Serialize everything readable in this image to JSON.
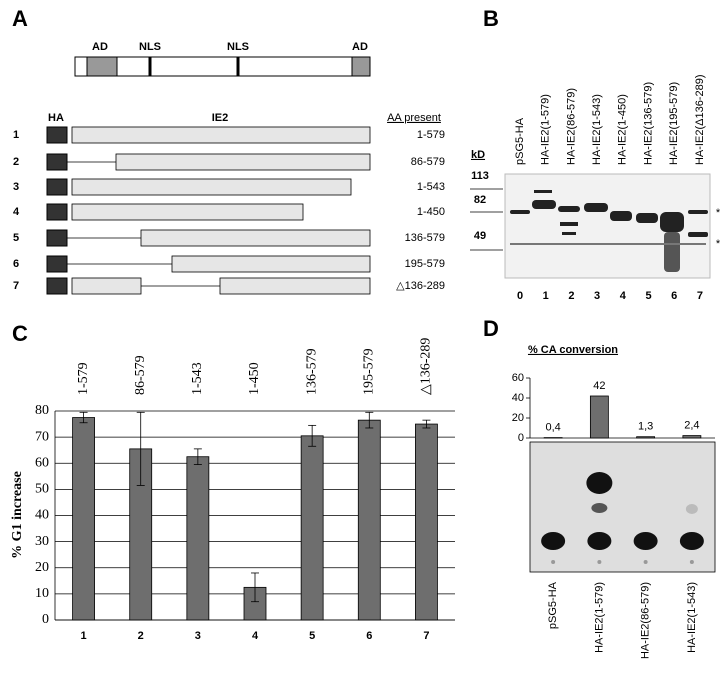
{
  "panel_a": {
    "label": "A",
    "domains": [
      "AD",
      "NLS",
      "NLS",
      "AD"
    ],
    "ha": "HA",
    "ie2": "IE2",
    "aa_header": "AA present",
    "rows": [
      {
        "number": "1",
        "range": "1-579"
      },
      {
        "number": "2",
        "range": "86-579"
      },
      {
        "number": "3",
        "range": "1-543"
      },
      {
        "number": "4",
        "range": "1-450"
      },
      {
        "number": "5",
        "range": "136-579"
      },
      {
        "number": "6",
        "range": "195-579"
      },
      {
        "number": "7",
        "range": "△136-289"
      }
    ]
  },
  "panel_b": {
    "label": "B",
    "kd": "kD",
    "markers": [
      "113",
      "82",
      "49"
    ],
    "lanes": [
      "pSG5-HA",
      "HA-IE2(1-579)",
      "HA-IE2(86-579)",
      "HA-IE2(1-543)",
      "HA-IE2(1-450)",
      "HA-IE2(136-579)",
      "HA-IE2(195-579)",
      "HA-IE2(Δ136-289)"
    ],
    "lane_numbers": [
      "0",
      "1",
      "2",
      "3",
      "4",
      "5",
      "6",
      "7"
    ],
    "stars": [
      "*",
      "*"
    ]
  },
  "chart_data": [
    {
      "type": "bar",
      "panel_label": "C",
      "y_label": "% G1 increase",
      "categories": [
        "1",
        "2",
        "3",
        "4",
        "5",
        "6",
        "7"
      ],
      "top_labels": [
        "1-579",
        "86-579",
        "1-543",
        "1-450",
        "136-579",
        "195-579",
        "△136-289"
      ],
      "values": [
        77.5,
        65.5,
        62.5,
        12.5,
        70.5,
        76.5,
        75
      ],
      "errors": [
        2,
        14,
        3,
        5.5,
        4,
        3,
        1.5
      ],
      "color": "#6e6e6e",
      "ylim": [
        0,
        80
      ],
      "yticks": [
        0,
        10,
        20,
        30,
        40,
        50,
        60,
        70,
        80
      ],
      "grid": true
    },
    {
      "type": "bar",
      "panel_label": "D",
      "title": "% CA conversion",
      "categories": [
        "pSG5-HA",
        "HA-IE2(1-579)",
        "HA-IE2(86-579)",
        "HA-IE2(1-543)"
      ],
      "values": [
        0.4,
        42,
        1.3,
        2.4
      ],
      "value_labels": [
        "0,4",
        "42",
        "1,3",
        "2,4"
      ],
      "color": "#6e6e6e",
      "ylim": [
        0,
        60
      ],
      "yticks": [
        0,
        20,
        40,
        60
      ],
      "grid": false
    }
  ]
}
